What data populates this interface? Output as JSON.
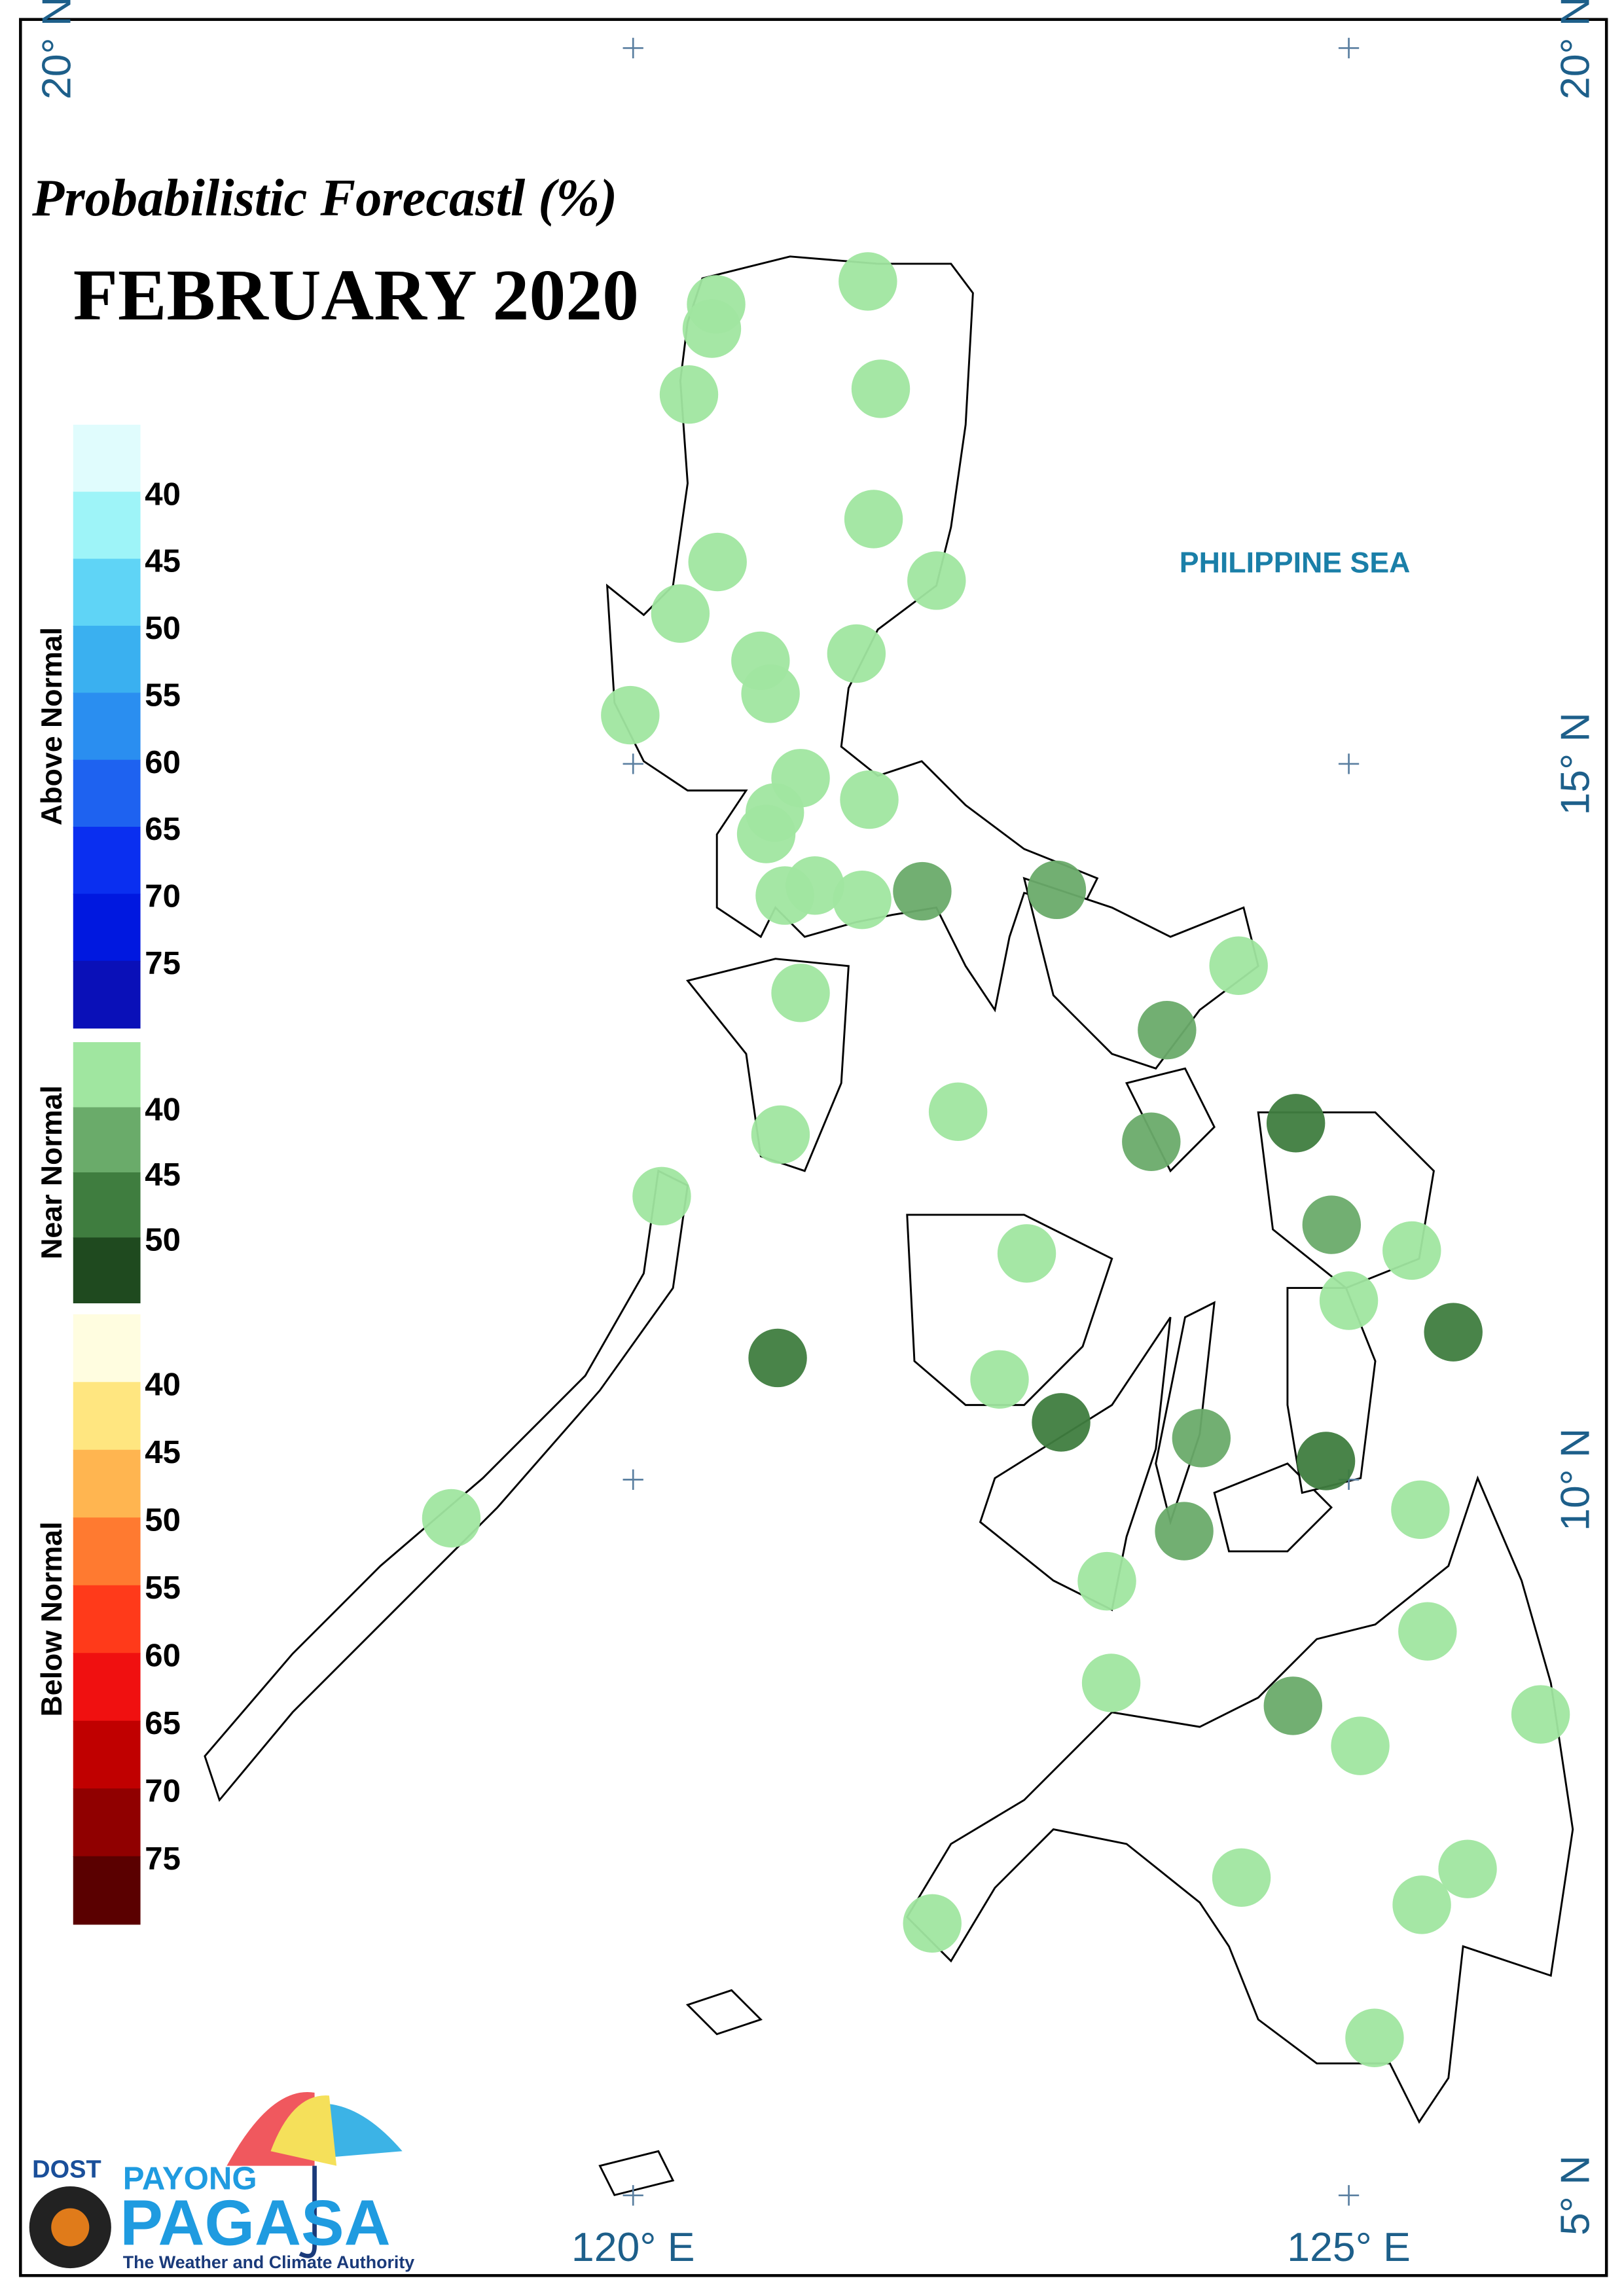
{
  "title": "Probabilistic Forecastl (%)",
  "subtitle": "FEBRUARY 2020",
  "legend": {
    "groups": [
      {
        "name": "Above Normal",
        "colors": [
          "#e0fcfd",
          "#9ef4f8",
          "#5fd4f6",
          "#3ab0f0",
          "#2a8ef0",
          "#1e62f0",
          "#0a2ff0",
          "#0018e0",
          "#0a10b8"
        ],
        "labels": [
          40,
          45,
          50,
          55,
          60,
          65,
          70,
          75
        ]
      },
      {
        "name": "Near Normal",
        "colors": [
          "#a0e6a0",
          "#6aab6a",
          "#3f7d3f",
          "#1f4a1f"
        ],
        "labels": [
          40,
          45,
          50
        ]
      },
      {
        "name": "Below Normal",
        "colors": [
          "#fffde0",
          "#ffe680",
          "#ffb550",
          "#ff7a30",
          "#ff3a1a",
          "#f01010",
          "#c00000",
          "#900000",
          "#5a0000"
        ],
        "labels": [
          40,
          45,
          50,
          55,
          60,
          65,
          70,
          75
        ]
      }
    ]
  },
  "map": {
    "lonlim": [
      115.72,
      126.8
    ],
    "latlim": [
      4.44,
      20.2
    ],
    "lonticks": [
      {
        "value": 120,
        "label": "120° E"
      },
      {
        "value": 125,
        "label": "125° E"
      }
    ],
    "latticks": [
      {
        "value": 20,
        "label": "20° N"
      },
      {
        "value": 15,
        "label": "15° N"
      },
      {
        "value": 10,
        "label": "10° N"
      },
      {
        "value": 5,
        "label": "5° N"
      }
    ],
    "sea_label": "PHILIPPINE SEA"
  },
  "stations": {
    "lon": [
      121.64,
      120.58,
      120.55,
      120.39,
      121.73,
      121.68,
      120.59,
      122.12,
      120.33,
      120.89,
      121.56,
      120.96,
      119.98,
      121.17,
      121.65,
      120.99,
      120.93,
      121.27,
      121.06,
      121.6,
      122.02,
      122.96,
      124.23,
      121.17,
      123.73,
      122.27,
      124.63,
      121.03,
      123.62,
      120.2,
      124.88,
      122.75,
      125.44,
      125.0,
      125.73,
      121.01,
      122.56,
      122.99,
      123.97,
      124.84,
      118.73,
      125.5,
      123.85,
      123.31,
      125.55,
      123.34,
      124.61,
      126.34,
      125.08,
      124.25,
      125.83,
      125.51,
      122.09,
      125.18
    ],
    "lat": [
      18.37,
      18.21,
      18.04,
      17.58,
      17.62,
      16.71,
      16.41,
      16.28,
      16.05,
      15.72,
      15.77,
      15.49,
      15.34,
      14.9,
      14.75,
      14.66,
      14.51,
      14.15,
      14.08,
      14.05,
      14.11,
      14.12,
      13.59,
      13.4,
      13.14,
      12.57,
      12.49,
      12.41,
      12.36,
      11.98,
      11.78,
      11.58,
      11.6,
      11.25,
      11.03,
      10.85,
      10.7,
      10.4,
      10.29,
      10.13,
      9.73,
      9.79,
      9.64,
      9.29,
      8.94,
      8.58,
      8.42,
      8.36,
      8.14,
      7.22,
      7.28,
      7.03,
      6.9,
      6.1
    ],
    "values": [
      40,
      40,
      40,
      40,
      40,
      40,
      40,
      40,
      40,
      40,
      40,
      40,
      40,
      40,
      40,
      40,
      40,
      40,
      40,
      40,
      45,
      45,
      40,
      40,
      45,
      40,
      50,
      40,
      45,
      40,
      45,
      40,
      40,
      40,
      50,
      50,
      40,
      50,
      45,
      50,
      40,
      40,
      45,
      40,
      40,
      40,
      45,
      40,
      40,
      40,
      40,
      40,
      40,
      40
    ]
  },
  "logo": {
    "agency": "DOST",
    "brand_top": "PAYONG",
    "brand": "PAGASA",
    "tagline": "The Weather and Climate Authority"
  }
}
